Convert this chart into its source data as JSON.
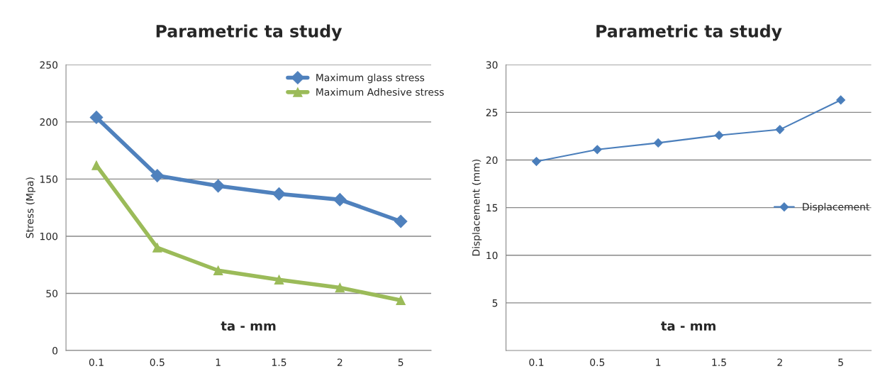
{
  "chart_data": [
    {
      "type": "line",
      "title": "Parametric ta study",
      "xlabel": "ta - mm",
      "ylabel": "Stress (Mpa)",
      "categories": [
        "0.1",
        "0.5",
        "1",
        "1.5",
        "2",
        "5"
      ],
      "ylim": [
        0,
        250
      ],
      "yticks": [
        0,
        50,
        100,
        150,
        200,
        250
      ],
      "grid": "y",
      "legend": "top right",
      "series": [
        {
          "name": "Maximum glass stress",
          "color": "#4f81bd",
          "marker": "diamond",
          "values": [
            204,
            153,
            144,
            137,
            132,
            113
          ]
        },
        {
          "name": "Maximum Adhesive stress",
          "color": "#9bbb59",
          "marker": "triangle",
          "values": [
            162,
            90,
            70,
            62,
            55,
            44
          ]
        }
      ]
    },
    {
      "type": "line",
      "title": "Parametric ta study",
      "xlabel": "ta - mm",
      "ylabel": "Displacement (mm)",
      "categories": [
        "0.1",
        "0.5",
        "1",
        "1.5",
        "2",
        "5"
      ],
      "ylim": [
        0,
        30
      ],
      "yticks": [
        5,
        10,
        15,
        20,
        25,
        30
      ],
      "grid": "y",
      "legend": "right",
      "series": [
        {
          "name": "Displacement",
          "color": "#4a7ebb",
          "marker": "diamond",
          "values": [
            19.85,
            21.1,
            21.8,
            22.6,
            23.2,
            26.3
          ]
        }
      ]
    }
  ]
}
